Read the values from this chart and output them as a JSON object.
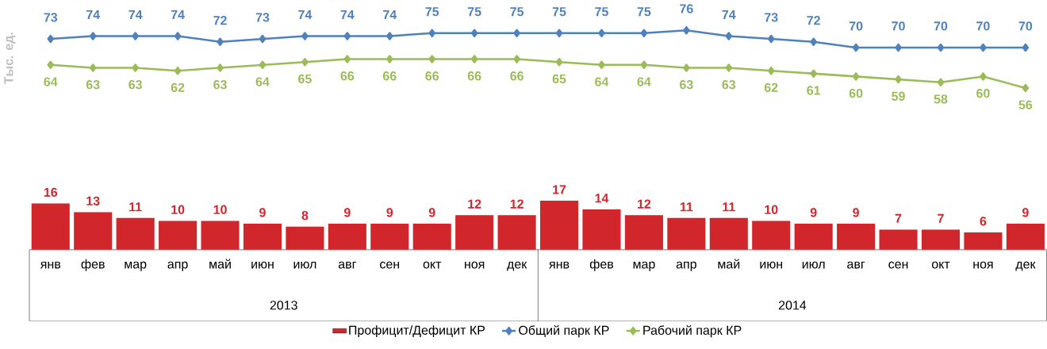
{
  "chart_data": {
    "type": "bar",
    "ylabel": "Тыс. ед.",
    "categories": [
      "янв",
      "фев",
      "мар",
      "апр",
      "май",
      "июн",
      "июл",
      "авг",
      "сен",
      "окт",
      "ноя",
      "дек",
      "янв",
      "фев",
      "мар",
      "апр",
      "май",
      "июн",
      "июл",
      "авг",
      "сен",
      "окт",
      "ноя",
      "дек"
    ],
    "annotations": [
      "2013",
      "2014"
    ],
    "tick_labels": "x",
    "data_labels": true,
    "legend": "bottom",
    "series": [
      {
        "name": "Профицит/Дефицит КР",
        "color": "#d0262c",
        "values": [
          16,
          13,
          11,
          10,
          10,
          9,
          8,
          9,
          9,
          9,
          12,
          12,
          17,
          14,
          12,
          11,
          11,
          10,
          9,
          9,
          7,
          7,
          6,
          9
        ]
      },
      {
        "name": "Общий парк КР",
        "type": "line",
        "color": "#4f81bd",
        "marker": "diamond",
        "values": [
          73,
          74,
          74,
          74,
          72,
          73,
          74,
          74,
          74,
          75,
          75,
          75,
          75,
          75,
          75,
          76,
          74,
          73,
          72,
          70,
          70,
          70,
          70,
          70
        ]
      },
      {
        "name": "Рабочий парк КР",
        "type": "line",
        "color": "#9bbb59",
        "marker": "diamond",
        "values": [
          64,
          63,
          63,
          62,
          63,
          64,
          65,
          66,
          66,
          66,
          66,
          66,
          65,
          64,
          64,
          63,
          63,
          62,
          61,
          60,
          59,
          58,
          60,
          56
        ]
      }
    ]
  }
}
